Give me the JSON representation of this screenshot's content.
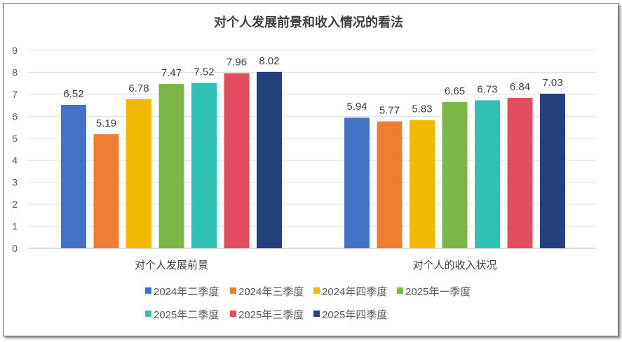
{
  "chart_data": {
    "type": "bar",
    "title": "对个人发展前景和收入情况的看法",
    "categories": [
      "对个人发展前景",
      "对个人的收入状况"
    ],
    "ylim": [
      0,
      9
    ],
    "yticks": [
      "0",
      "1",
      "2",
      "3",
      "4",
      "5",
      "6",
      "7",
      "8",
      "9"
    ],
    "grid": true,
    "legend_position": "bottom",
    "series": [
      {
        "name": "2024年二季度",
        "color": "#4472C4",
        "values": [
          6.52,
          5.94
        ]
      },
      {
        "name": "2024年三季度",
        "color": "#ED7D31",
        "values": [
          5.19,
          5.77
        ]
      },
      {
        "name": "2024年四季度",
        "color": "#F0B800",
        "values": [
          6.78,
          5.83
        ]
      },
      {
        "name": "2025年一季度",
        "color": "#7AB648",
        "values": [
          7.47,
          6.65
        ]
      },
      {
        "name": "2025年二季度",
        "color": "#2EC1B4",
        "values": [
          7.52,
          6.73
        ]
      },
      {
        "name": "2025年三季度",
        "color": "#E44C5F",
        "values": [
          7.96,
          6.84
        ]
      },
      {
        "name": "2025年四季度",
        "color": "#24417C",
        "values": [
          8.02,
          7.03
        ]
      }
    ]
  }
}
